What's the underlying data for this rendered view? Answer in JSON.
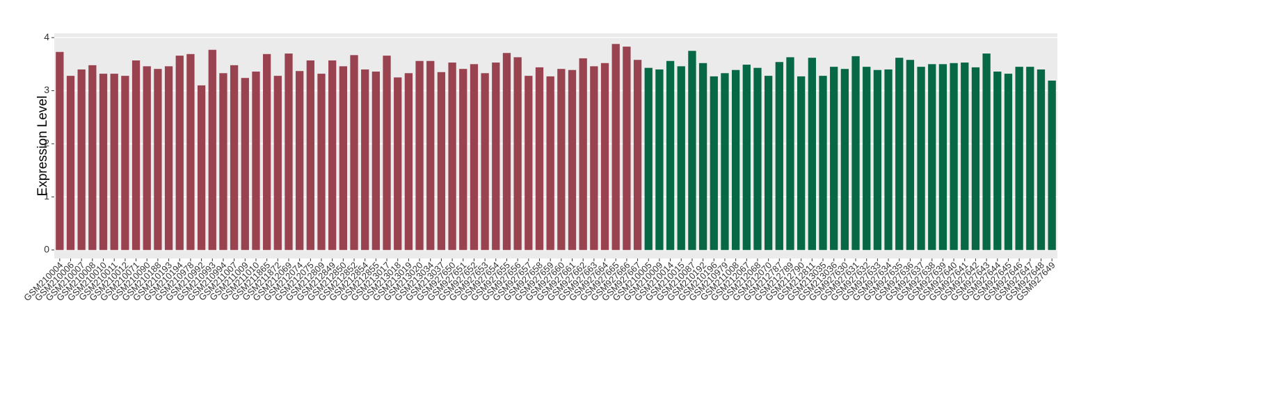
{
  "chart_data": {
    "type": "bar",
    "y_label": "Expression Level",
    "categories": [
      "GSM210004",
      "GSM210006",
      "GSM210007",
      "GSM210008",
      "GSM210010",
      "GSM210011",
      "GSM210012",
      "GSM210071",
      "GSM210090",
      "GSM210188",
      "GSM210193",
      "GSM210194",
      "GSM210978",
      "GSM210992",
      "GSM210993",
      "GSM210994",
      "GSM211007",
      "GSM211009",
      "GSM211010",
      "GSM211865",
      "GSM211872",
      "GSM212069",
      "GSM212074",
      "GSM212075",
      "GSM212809",
      "GSM212849",
      "GSM212850",
      "GSM212852",
      "GSM212854",
      "GSM212855",
      "GSM213017",
      "GSM213018",
      "GSM213019",
      "GSM213020",
      "GSM213034",
      "GSM213037",
      "GSM927650",
      "GSM927651",
      "GSM927652",
      "GSM927653",
      "GSM927654",
      "GSM927655",
      "GSM927656",
      "GSM927657",
      "GSM927658",
      "GSM927659",
      "GSM927660",
      "GSM927661",
      "GSM927662",
      "GSM927663",
      "GSM927664",
      "GSM927665",
      "GSM927666",
      "GSM927667",
      "GSM210005",
      "GSM210009",
      "GSM210014",
      "GSM210015",
      "GSM210087",
      "GSM210192",
      "GSM210196",
      "GSM210979",
      "GSM211008",
      "GSM212067",
      "GSM212068",
      "GSM212070",
      "GSM212787",
      "GSM212789",
      "GSM212790",
      "GSM212811",
      "GSM213035",
      "GSM213036",
      "GSM927630",
      "GSM927631",
      "GSM927632",
      "GSM927633",
      "GSM927634",
      "GSM927635",
      "GSM927636",
      "GSM927637",
      "GSM927638",
      "GSM927639",
      "GSM927640",
      "GSM927641",
      "GSM927642",
      "GSM927643",
      "GSM927644",
      "GSM927645",
      "GSM927646",
      "GSM927647",
      "GSM927648",
      "GSM927649"
    ],
    "values": [
      3.73,
      3.28,
      3.4,
      3.48,
      3.32,
      3.32,
      3.28,
      3.57,
      3.46,
      3.41,
      3.46,
      3.66,
      3.69,
      3.1,
      3.77,
      3.33,
      3.48,
      3.24,
      3.36,
      3.69,
      3.28,
      3.7,
      3.37,
      3.57,
      3.32,
      3.57,
      3.46,
      3.67,
      3.4,
      3.36,
      3.66,
      3.25,
      3.33,
      3.56,
      3.56,
      3.35,
      3.53,
      3.41,
      3.5,
      3.33,
      3.53,
      3.71,
      3.63,
      3.28,
      3.44,
      3.27,
      3.41,
      3.39,
      3.61,
      3.46,
      3.52,
      3.88,
      3.83,
      3.58,
      3.43,
      3.4,
      3.56,
      3.46,
      3.75,
      3.52,
      3.27,
      3.33,
      3.39,
      3.49,
      3.43,
      3.28,
      3.54,
      3.63,
      3.27,
      3.62,
      3.28,
      3.45,
      3.41,
      3.65,
      3.45,
      3.39,
      3.4,
      3.62,
      3.58,
      3.45,
      3.5,
      3.5,
      3.52,
      3.53,
      3.44,
      3.7,
      3.36,
      3.32,
      3.45,
      3.45,
      3.4,
      3.19
    ],
    "colors": [
      "#9a4350",
      "#9a4350",
      "#9a4350",
      "#9a4350",
      "#9a4350",
      "#9a4350",
      "#9a4350",
      "#9a4350",
      "#9a4350",
      "#9a4350",
      "#9a4350",
      "#9a4350",
      "#9a4350",
      "#9a4350",
      "#9a4350",
      "#9a4350",
      "#9a4350",
      "#9a4350",
      "#9a4350",
      "#9a4350",
      "#9a4350",
      "#9a4350",
      "#9a4350",
      "#9a4350",
      "#9a4350",
      "#9a4350",
      "#9a4350",
      "#9a4350",
      "#9a4350",
      "#9a4350",
      "#9a4350",
      "#9a4350",
      "#9a4350",
      "#9a4350",
      "#9a4350",
      "#9a4350",
      "#9a4350",
      "#9a4350",
      "#9a4350",
      "#9a4350",
      "#9a4350",
      "#9a4350",
      "#9a4350",
      "#9a4350",
      "#9a4350",
      "#9a4350",
      "#9a4350",
      "#9a4350",
      "#9a4350",
      "#9a4350",
      "#9a4350",
      "#9a4350",
      "#9a4350",
      "#9a4350",
      "#066844",
      "#066844",
      "#066844",
      "#066844",
      "#066844",
      "#066844",
      "#066844",
      "#066844",
      "#066844",
      "#066844",
      "#066844",
      "#066844",
      "#066844",
      "#066844",
      "#066844",
      "#066844",
      "#066844",
      "#066844",
      "#066844",
      "#066844",
      "#066844",
      "#066844",
      "#066844",
      "#066844",
      "#066844",
      "#066844",
      "#066844",
      "#066844",
      "#066844",
      "#066844",
      "#066844",
      "#066844",
      "#066844",
      "#066844",
      "#066844",
      "#066844",
      "#066844",
      "#066844"
    ],
    "ylim": [
      -0.16,
      4.08
    ],
    "yticks": [
      0,
      1,
      2,
      3,
      4
    ],
    "grid": true
  }
}
